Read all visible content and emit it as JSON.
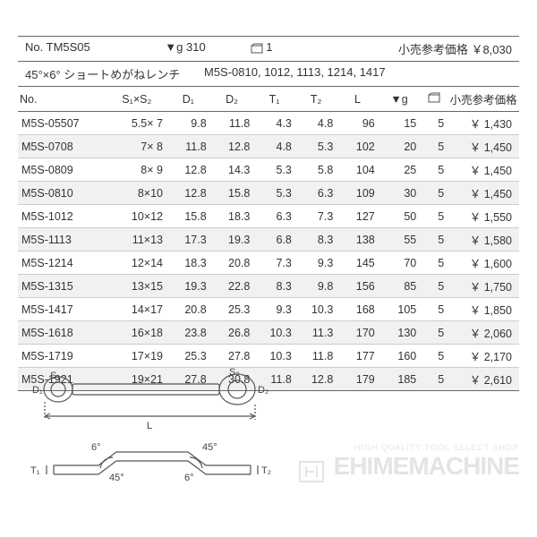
{
  "header": {
    "no_label": "No.",
    "no_value": "TM5S05",
    "weight_sym": "▼g",
    "weight_value": "310",
    "box_value": "1",
    "price_label": "小売参考価格",
    "price_value": "￥8,030"
  },
  "subline": {
    "desc": "45°×6° ショートめがねレンチ",
    "models": "M5S-0810, 1012, 1113, 1214, 1417"
  },
  "columns": {
    "no": "No.",
    "s": "S₁×S₂",
    "d1": "D₁",
    "d2": "D₂",
    "t1": "T₁",
    "t2": "T₂",
    "l": "L",
    "g": "▼g",
    "price": "小売参考価格"
  },
  "rows": [
    {
      "no": "M5S-05507",
      "s": "5.5×  7",
      "d1": "9.8",
      "d2": "11.8",
      "t1": "4.3",
      "t2": "4.8",
      "l": "96",
      "g": "15",
      "box": "5",
      "price": "￥ 1,430"
    },
    {
      "no": "M5S-0708",
      "s": "7×  8",
      "d1": "11.8",
      "d2": "12.8",
      "t1": "4.8",
      "t2": "5.3",
      "l": "102",
      "g": "20",
      "box": "5",
      "price": "￥ 1,450"
    },
    {
      "no": "M5S-0809",
      "s": "8×  9",
      "d1": "12.8",
      "d2": "14.3",
      "t1": "5.3",
      "t2": "5.8",
      "l": "104",
      "g": "25",
      "box": "5",
      "price": "￥ 1,450"
    },
    {
      "no": "M5S-0810",
      "s": "8×10",
      "d1": "12.8",
      "d2": "15.8",
      "t1": "5.3",
      "t2": "6.3",
      "l": "109",
      "g": "30",
      "box": "5",
      "price": "￥ 1,450"
    },
    {
      "no": "M5S-1012",
      "s": "10×12",
      "d1": "15.8",
      "d2": "18.3",
      "t1": "6.3",
      "t2": "7.3",
      "l": "127",
      "g": "50",
      "box": "5",
      "price": "￥ 1,550"
    },
    {
      "no": "M5S-1113",
      "s": "11×13",
      "d1": "17.3",
      "d2": "19.3",
      "t1": "6.8",
      "t2": "8.3",
      "l": "138",
      "g": "55",
      "box": "5",
      "price": "￥ 1,580"
    },
    {
      "no": "M5S-1214",
      "s": "12×14",
      "d1": "18.3",
      "d2": "20.8",
      "t1": "7.3",
      "t2": "9.3",
      "l": "145",
      "g": "70",
      "box": "5",
      "price": "￥ 1,600"
    },
    {
      "no": "M5S-1315",
      "s": "13×15",
      "d1": "19.3",
      "d2": "22.8",
      "t1": "8.3",
      "t2": "9.8",
      "l": "156",
      "g": "85",
      "box": "5",
      "price": "￥ 1,750"
    },
    {
      "no": "M5S-1417",
      "s": "14×17",
      "d1": "20.8",
      "d2": "25.3",
      "t1": "9.3",
      "t2": "10.3",
      "l": "168",
      "g": "105",
      "box": "5",
      "price": "￥ 1,850"
    },
    {
      "no": "M5S-1618",
      "s": "16×18",
      "d1": "23.8",
      "d2": "26.8",
      "t1": "10.3",
      "t2": "11.3",
      "l": "170",
      "g": "130",
      "box": "5",
      "price": "￥ 2,060"
    },
    {
      "no": "M5S-1719",
      "s": "17×19",
      "d1": "25.3",
      "d2": "27.8",
      "t1": "10.3",
      "t2": "11.8",
      "l": "177",
      "g": "160",
      "box": "5",
      "price": "￥ 2,170"
    },
    {
      "no": "M5S-1921",
      "s": "19×21",
      "d1": "27.8",
      "d2": "30.8",
      "t1": "11.8",
      "t2": "12.8",
      "l": "179",
      "g": "185",
      "box": "5",
      "price": "￥ 2,610"
    }
  ],
  "diagram": {
    "labels": {
      "d1": "D₁",
      "s1": "S₁",
      "s2": "S₂",
      "d2": "D₂",
      "l": "L",
      "t1": "T₁",
      "t2": "T₂",
      "a45": "45°",
      "a6": "6°"
    },
    "stroke": "#555555"
  },
  "watermark": {
    "small": "HIGH QUALITY TOOL SELECT SHOP",
    "big": "EHIMEMACHINE"
  }
}
